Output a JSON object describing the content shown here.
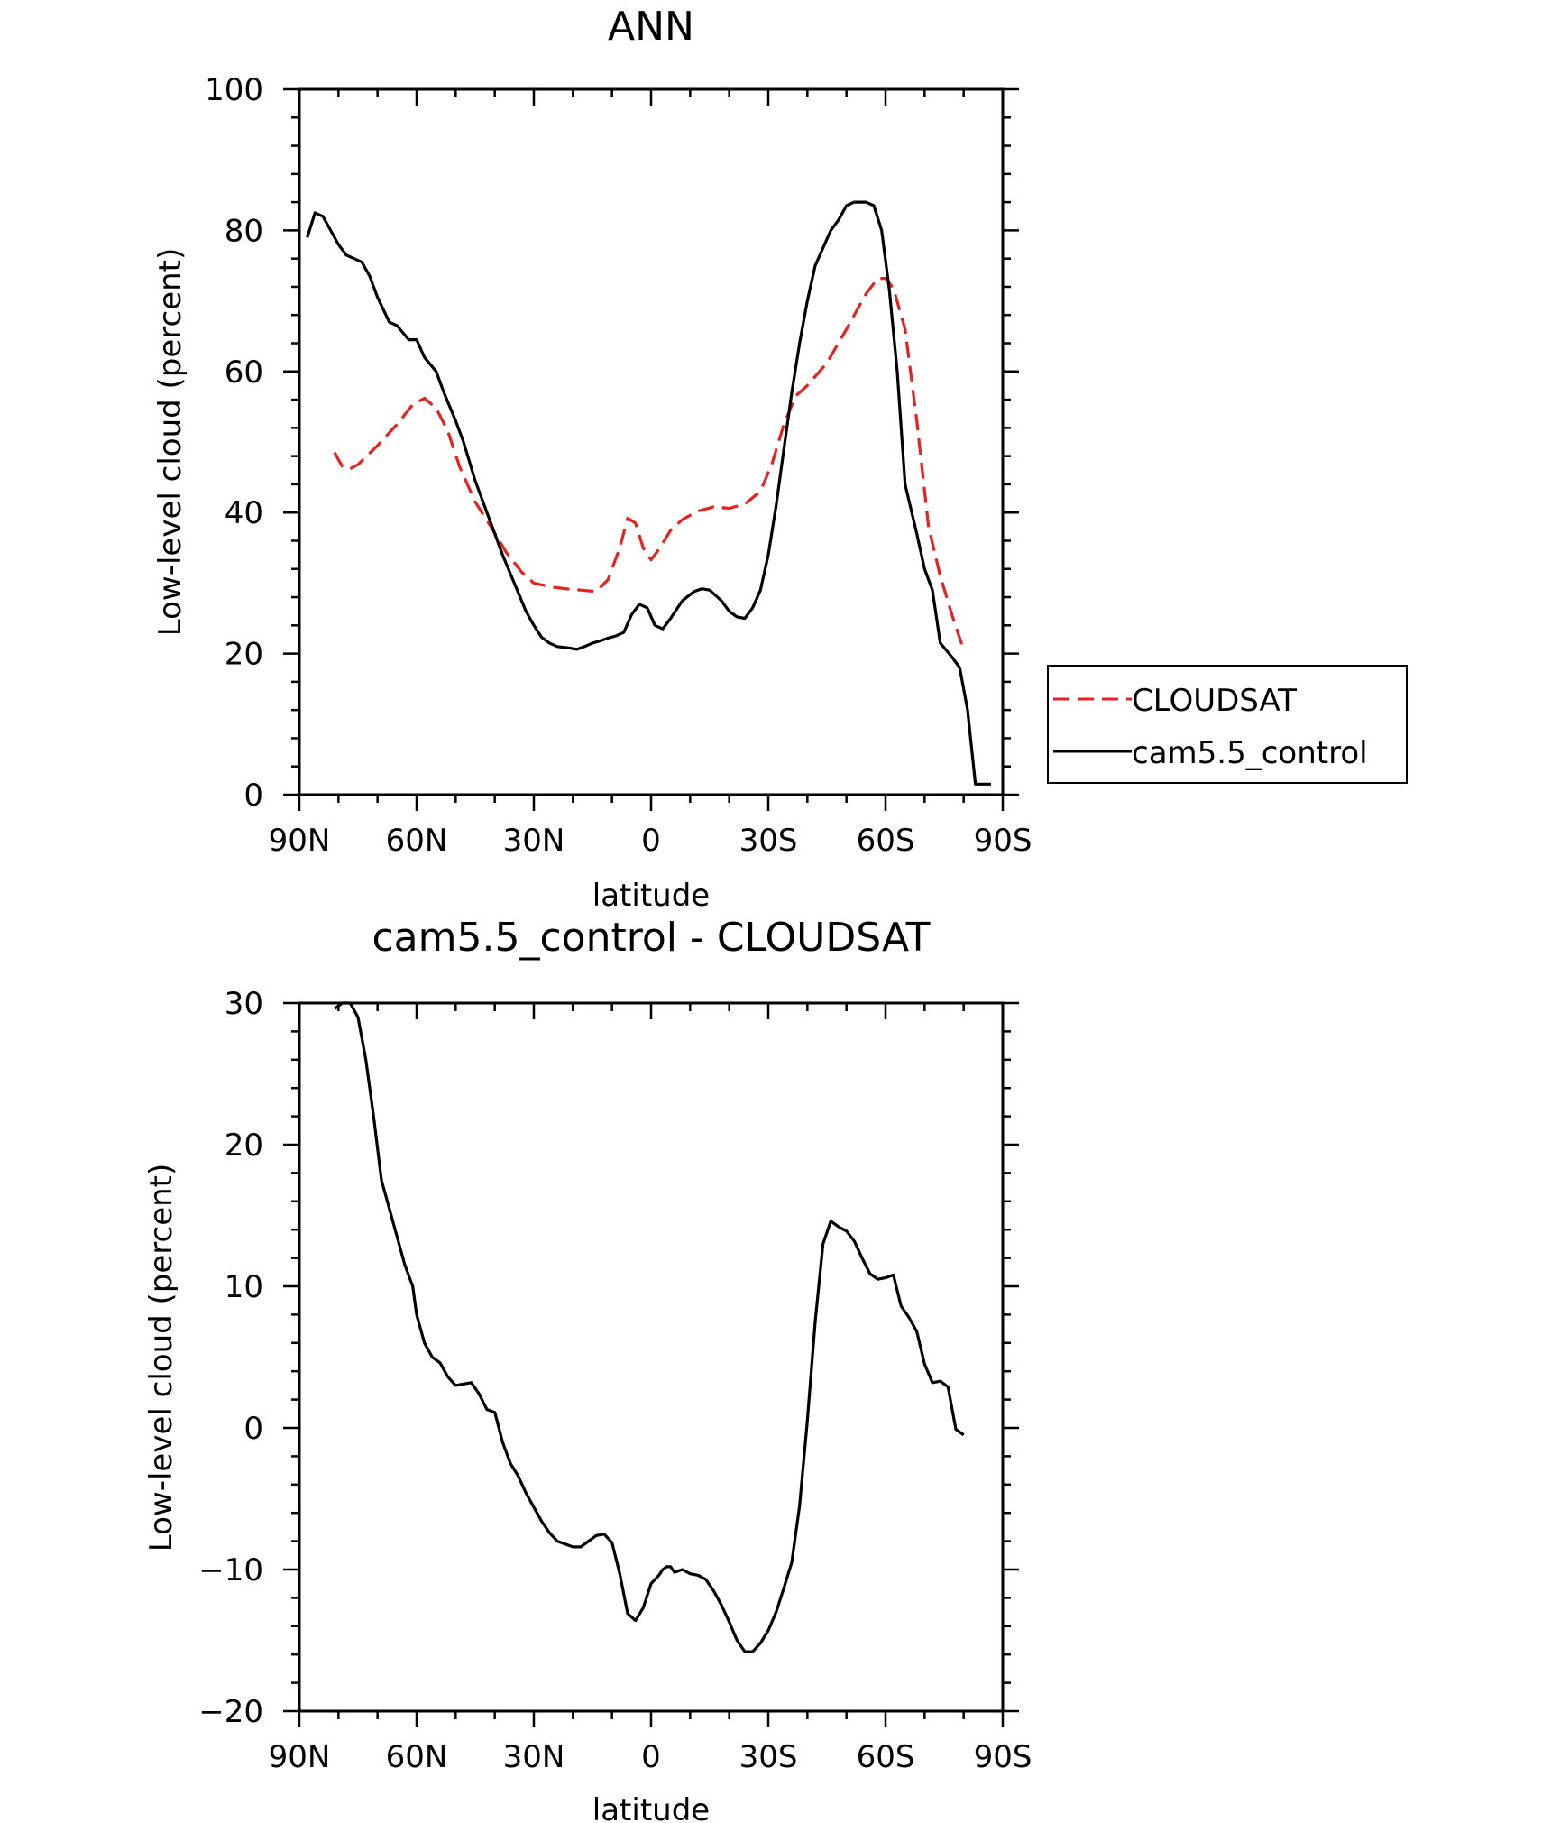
{
  "chart_data": [
    {
      "type": "line",
      "title": "ANN",
      "xlabel": "latitude",
      "ylabel": "Low-level cloud (percent)",
      "xlim": [
        90,
        -90
      ],
      "ylim": [
        0,
        100
      ],
      "x_ticks": [
        90,
        60,
        30,
        0,
        -30,
        -60,
        -90
      ],
      "x_tick_labels": [
        "90N",
        "60N",
        "30N",
        "0",
        "30S",
        "60S",
        "90S"
      ],
      "y_ticks": [
        0,
        20,
        40,
        60,
        80,
        100
      ],
      "y_tick_labels": [
        "0",
        "20",
        "40",
        "60",
        "80",
        "100"
      ],
      "legend": {
        "position": "right",
        "entries": [
          {
            "label": "CLOUDSAT",
            "color": "#e8201e",
            "style": "dashed"
          },
          {
            "label": "cam5.5_control",
            "color": "#000000",
            "style": "solid"
          }
        ]
      },
      "series": [
        {
          "name": "CLOUDSAT",
          "color": "#e8201e",
          "style": "dashed",
          "x": [
            81,
            79,
            77,
            75,
            70,
            65,
            61,
            58,
            55,
            52,
            49,
            45,
            41,
            37,
            33,
            30,
            26,
            22,
            18,
            14,
            11,
            8,
            6,
            4,
            2,
            0,
            -2,
            -5,
            -8,
            -12,
            -16,
            -20,
            -24,
            -28,
            -31,
            -34,
            -37,
            -40,
            -45,
            -50,
            -55,
            -58,
            -60,
            -62,
            -65,
            -68,
            -71,
            -74,
            -77,
            -80
          ],
          "values": [
            48.5,
            46.5,
            46.2,
            46.8,
            49.5,
            52.5,
            55.3,
            56.2,
            54.8,
            51.5,
            46.5,
            41.5,
            38.0,
            34.3,
            31.5,
            30.0,
            29.5,
            29.2,
            29.0,
            28.8,
            30.5,
            35.0,
            39.2,
            38.5,
            35.0,
            33.3,
            34.8,
            37.5,
            39.0,
            40.2,
            40.8,
            40.6,
            41.2,
            43.0,
            47.0,
            52.5,
            56.5,
            58.0,
            61.2,
            66.0,
            71.0,
            73.2,
            73.2,
            71.8,
            66.0,
            53.0,
            38.0,
            31.0,
            25.5,
            20.5
          ]
        },
        {
          "name": "cam5.5_control",
          "color": "#000000",
          "style": "solid",
          "x": [
            88,
            86,
            84,
            82,
            80,
            78,
            76,
            74,
            72,
            70,
            67,
            65,
            62,
            60,
            58,
            55,
            53,
            50,
            48,
            45,
            42,
            40,
            38,
            35,
            32,
            30,
            28,
            26,
            24,
            21,
            19,
            17,
            15,
            13,
            11,
            9,
            7,
            5,
            3,
            1,
            -1,
            -3,
            -5,
            -8,
            -11,
            -13,
            -15,
            -18,
            -20,
            -22,
            -24,
            -26,
            -28,
            -30,
            -32,
            -34,
            -36,
            -38,
            -40,
            -42,
            -44,
            -46,
            -48,
            -50,
            -52,
            -55,
            -57,
            -59,
            -61,
            -63,
            -65,
            -68,
            -70,
            -72,
            -74,
            -77,
            -79,
            -81,
            -83,
            -85,
            -87
          ],
          "values": [
            79,
            82.5,
            82,
            80,
            78,
            76.5,
            76,
            75.5,
            73.5,
            70.5,
            67,
            66.5,
            64.5,
            64.5,
            62,
            60,
            57,
            53,
            50,
            44.5,
            40,
            37,
            34,
            30,
            26,
            24,
            22.3,
            21.5,
            21,
            20.8,
            20.6,
            21,
            21.5,
            21.8,
            22.2,
            22.5,
            23,
            25.5,
            27,
            26.5,
            24,
            23.5,
            25,
            27.5,
            28.8,
            29.2,
            29,
            27.5,
            26,
            25.2,
            25,
            26.5,
            29,
            34,
            41,
            49,
            57,
            64,
            70,
            75,
            77.5,
            80,
            81.5,
            83.5,
            84,
            84,
            83.5,
            80,
            71.5,
            60,
            44,
            37,
            32,
            29,
            21.5,
            19.5,
            18,
            12,
            1.5,
            1.5,
            1.5
          ]
        }
      ]
    },
    {
      "type": "line",
      "title": "cam5.5_control - CLOUDSAT",
      "xlabel": "latitude",
      "ylabel": "Low-level cloud (percent)",
      "xlim": [
        90,
        -90
      ],
      "ylim": [
        -20,
        30
      ],
      "x_ticks": [
        90,
        60,
        30,
        0,
        -30,
        -60,
        -90
      ],
      "x_tick_labels": [
        "90N",
        "60N",
        "30N",
        "0",
        "30S",
        "60S",
        "90S"
      ],
      "y_ticks": [
        -20,
        -10,
        0,
        10,
        20,
        30
      ],
      "y_tick_labels": [
        "−20",
        "−10",
        "0",
        "10",
        "20",
        "30"
      ],
      "series": [
        {
          "name": "cam5.5_control - CLOUDSAT",
          "color": "#000000",
          "style": "solid",
          "x": [
            81,
            79,
            77,
            75,
            73,
            71,
            69,
            67,
            65,
            63,
            61,
            60,
            58,
            56,
            54,
            52,
            50,
            48,
            46,
            44,
            42,
            40,
            38,
            36,
            34,
            32,
            30,
            28,
            26,
            24,
            22,
            20,
            18,
            16,
            14,
            12,
            10,
            8,
            6,
            4,
            2,
            0,
            -2,
            -3,
            -4,
            -5,
            -6,
            -8,
            -10,
            -12,
            -14,
            -16,
            -18,
            -20,
            -22,
            -24,
            -26,
            -28,
            -30,
            -32,
            -34,
            -36,
            -38,
            -40,
            -42,
            -44,
            -46,
            -48,
            -50,
            -52,
            -54,
            -56,
            -58,
            -60,
            -62,
            -64,
            -66,
            -68,
            -70,
            -72,
            -74,
            -76,
            -78,
            -80
          ],
          "values": [
            29.6,
            30.0,
            30.0,
            29.0,
            26.0,
            22.0,
            17.5,
            15.5,
            13.5,
            11.5,
            10.0,
            8.0,
            6.0,
            5.0,
            4.6,
            3.6,
            3.0,
            3.1,
            3.2,
            2.4,
            1.3,
            1.1,
            -1.0,
            -2.5,
            -3.4,
            -4.6,
            -5.6,
            -6.6,
            -7.4,
            -8.0,
            -8.2,
            -8.4,
            -8.4,
            -8.0,
            -7.6,
            -7.5,
            -8.1,
            -10.3,
            -13.1,
            -13.6,
            -12.7,
            -11.0,
            -10.4,
            -10.0,
            -9.8,
            -9.8,
            -10.2,
            -10.0,
            -10.3,
            -10.4,
            -10.7,
            -11.5,
            -12.5,
            -13.7,
            -15.0,
            -15.8,
            -15.8,
            -15.2,
            -14.3,
            -13.0,
            -11.3,
            -9.5,
            -5.5,
            0.5,
            7.5,
            13.0,
            14.6,
            14.2,
            13.9,
            13.2,
            12.0,
            10.9,
            10.5,
            10.6,
            10.8,
            8.6,
            7.8,
            6.8,
            4.5,
            3.2,
            3.3,
            2.9,
            -0.1,
            -0.5
          ]
        }
      ]
    }
  ]
}
